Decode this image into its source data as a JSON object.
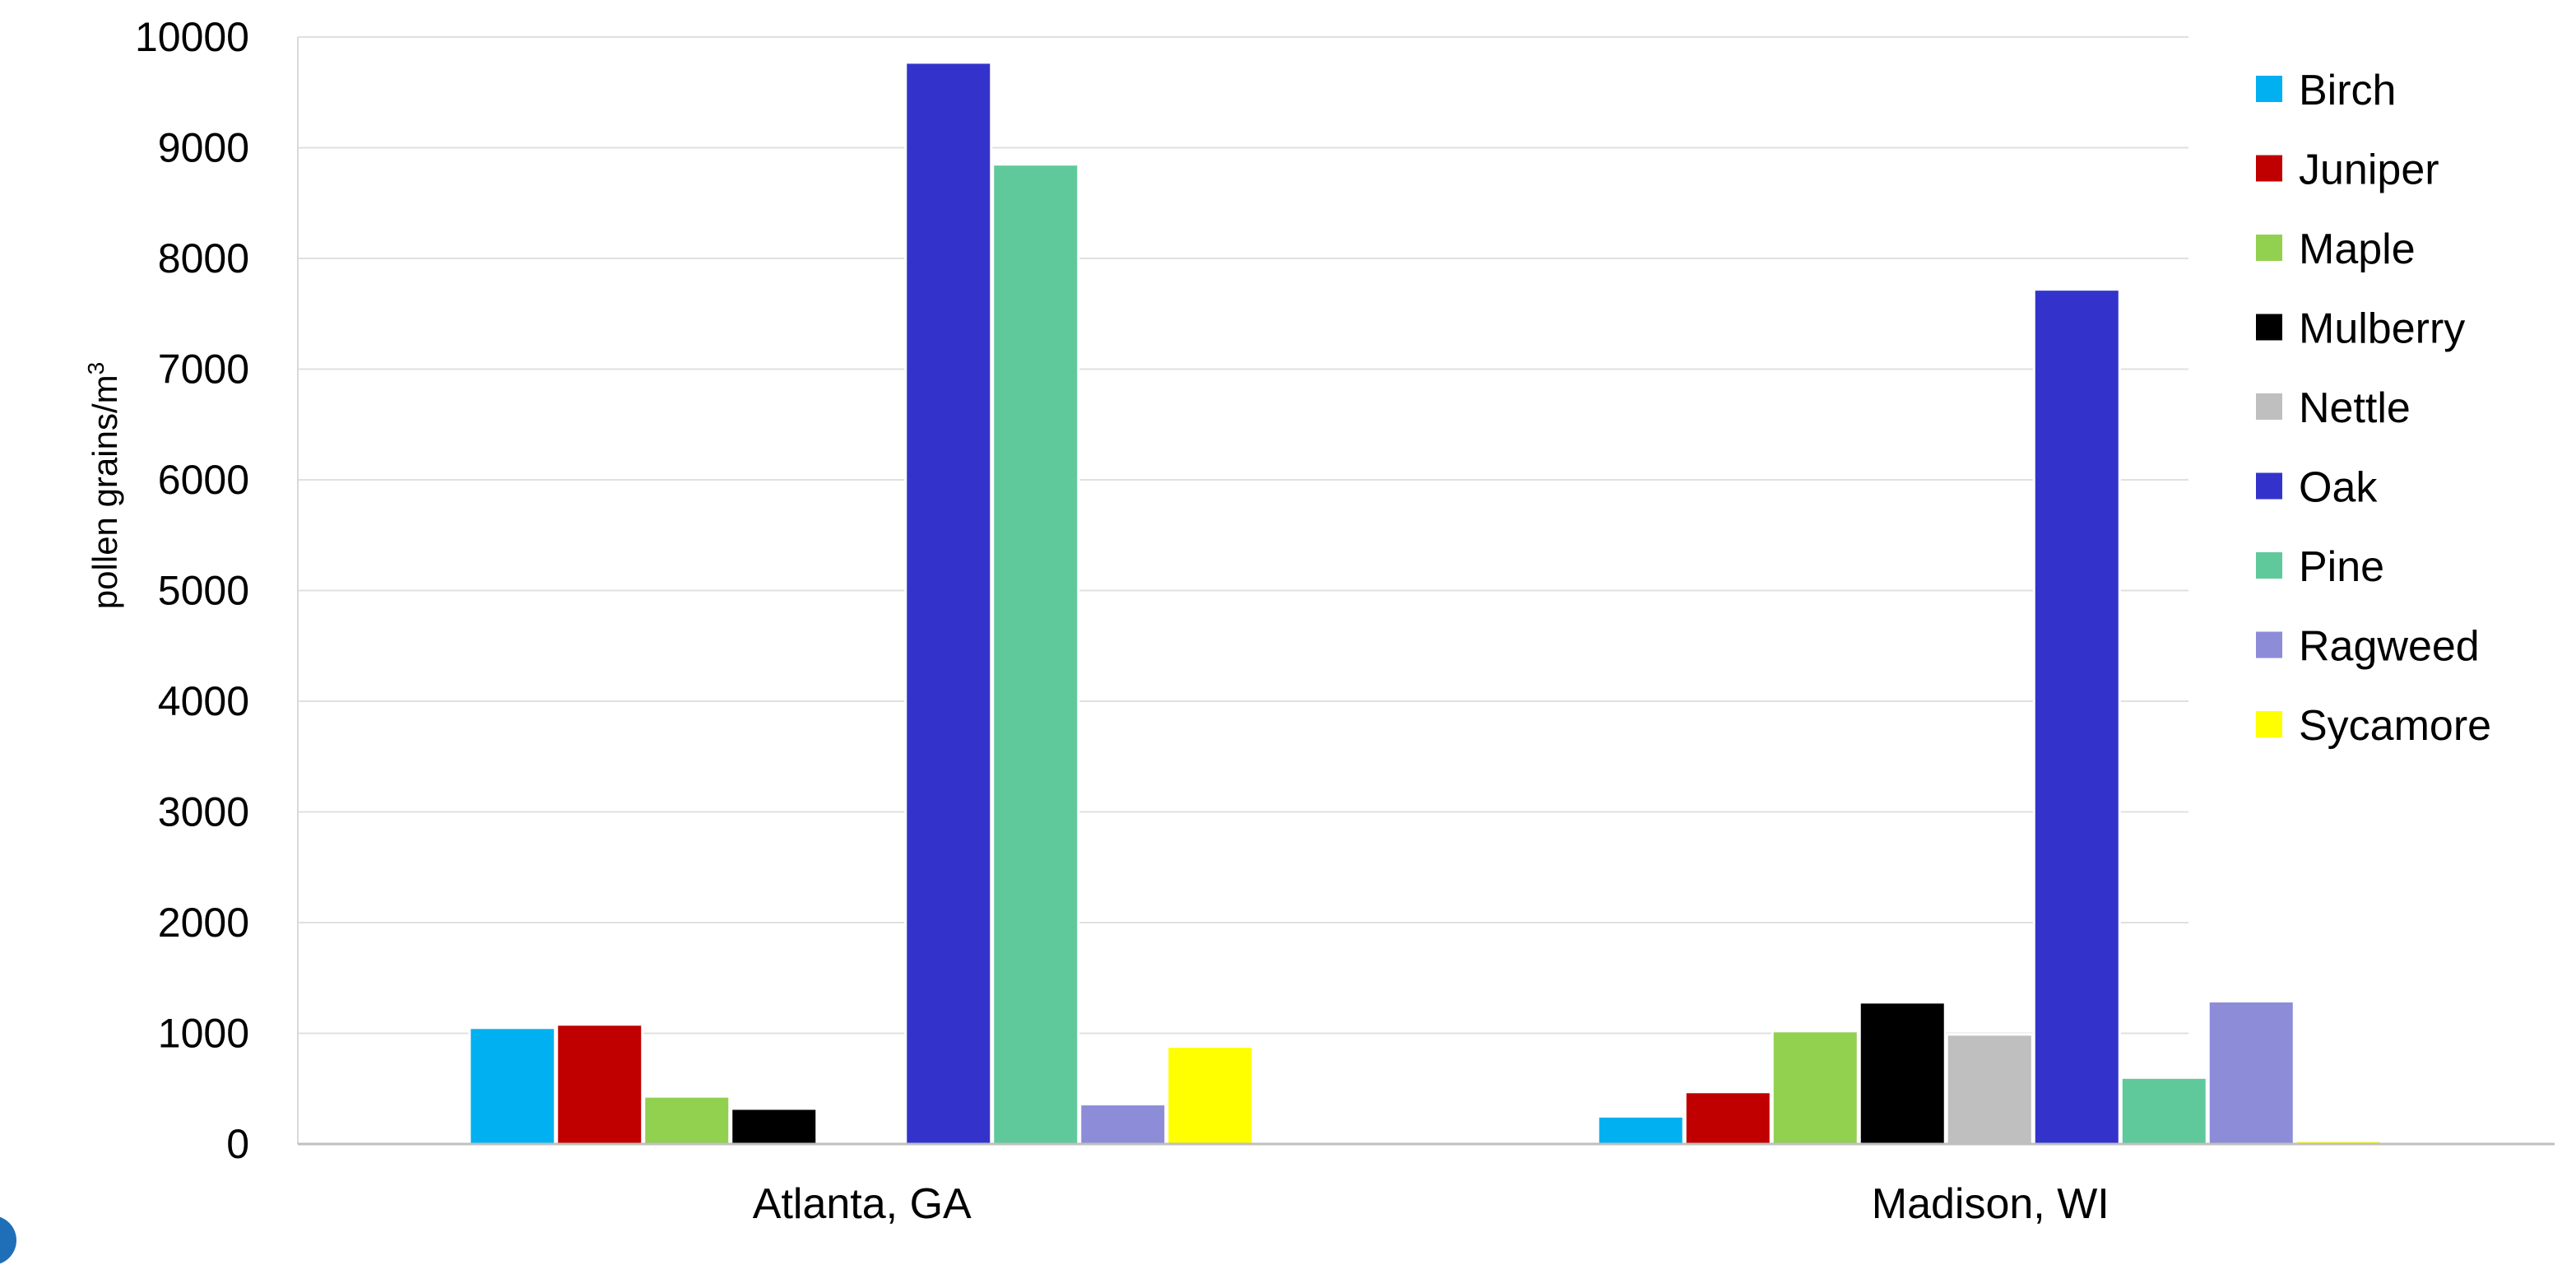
{
  "chart_data": {
    "type": "bar",
    "title": "",
    "xlabel": "",
    "ylabel": "pollen grains/m",
    "ylabel_superscript": "3",
    "ylim": [
      0,
      10000
    ],
    "yticks": [
      "0",
      "1000",
      "2000",
      "3000",
      "4000",
      "5000",
      "6000",
      "7000",
      "8000",
      "9000",
      "10000"
    ],
    "grid": true,
    "legend_position": "right",
    "categories": [
      "Atlanta, GA",
      "Madison, WI"
    ],
    "series": [
      {
        "name": "Birch",
        "color": "#00b0f0",
        "values": [
          1050,
          250
        ]
      },
      {
        "name": "Juniper",
        "color": "#c00000",
        "values": [
          1080,
          470
        ]
      },
      {
        "name": "Maple",
        "color": "#92d050",
        "values": [
          430,
          1020
        ]
      },
      {
        "name": "Mulberry",
        "color": "#000000",
        "values": [
          320,
          1280
        ]
      },
      {
        "name": "Nettle",
        "color": "#bfbfbf",
        "values": [
          0,
          990
        ]
      },
      {
        "name": "Oak",
        "color": "#3333cc",
        "values": [
          9770,
          7720
        ]
      },
      {
        "name": "Pine",
        "color": "#5fc99b",
        "values": [
          8850,
          600
        ]
      },
      {
        "name": "Ragweed",
        "color": "#8c8cd9",
        "values": [
          360,
          1290
        ]
      },
      {
        "name": "Sycamore",
        "color": "#ffff00",
        "values": [
          880,
          30
        ]
      }
    ]
  }
}
